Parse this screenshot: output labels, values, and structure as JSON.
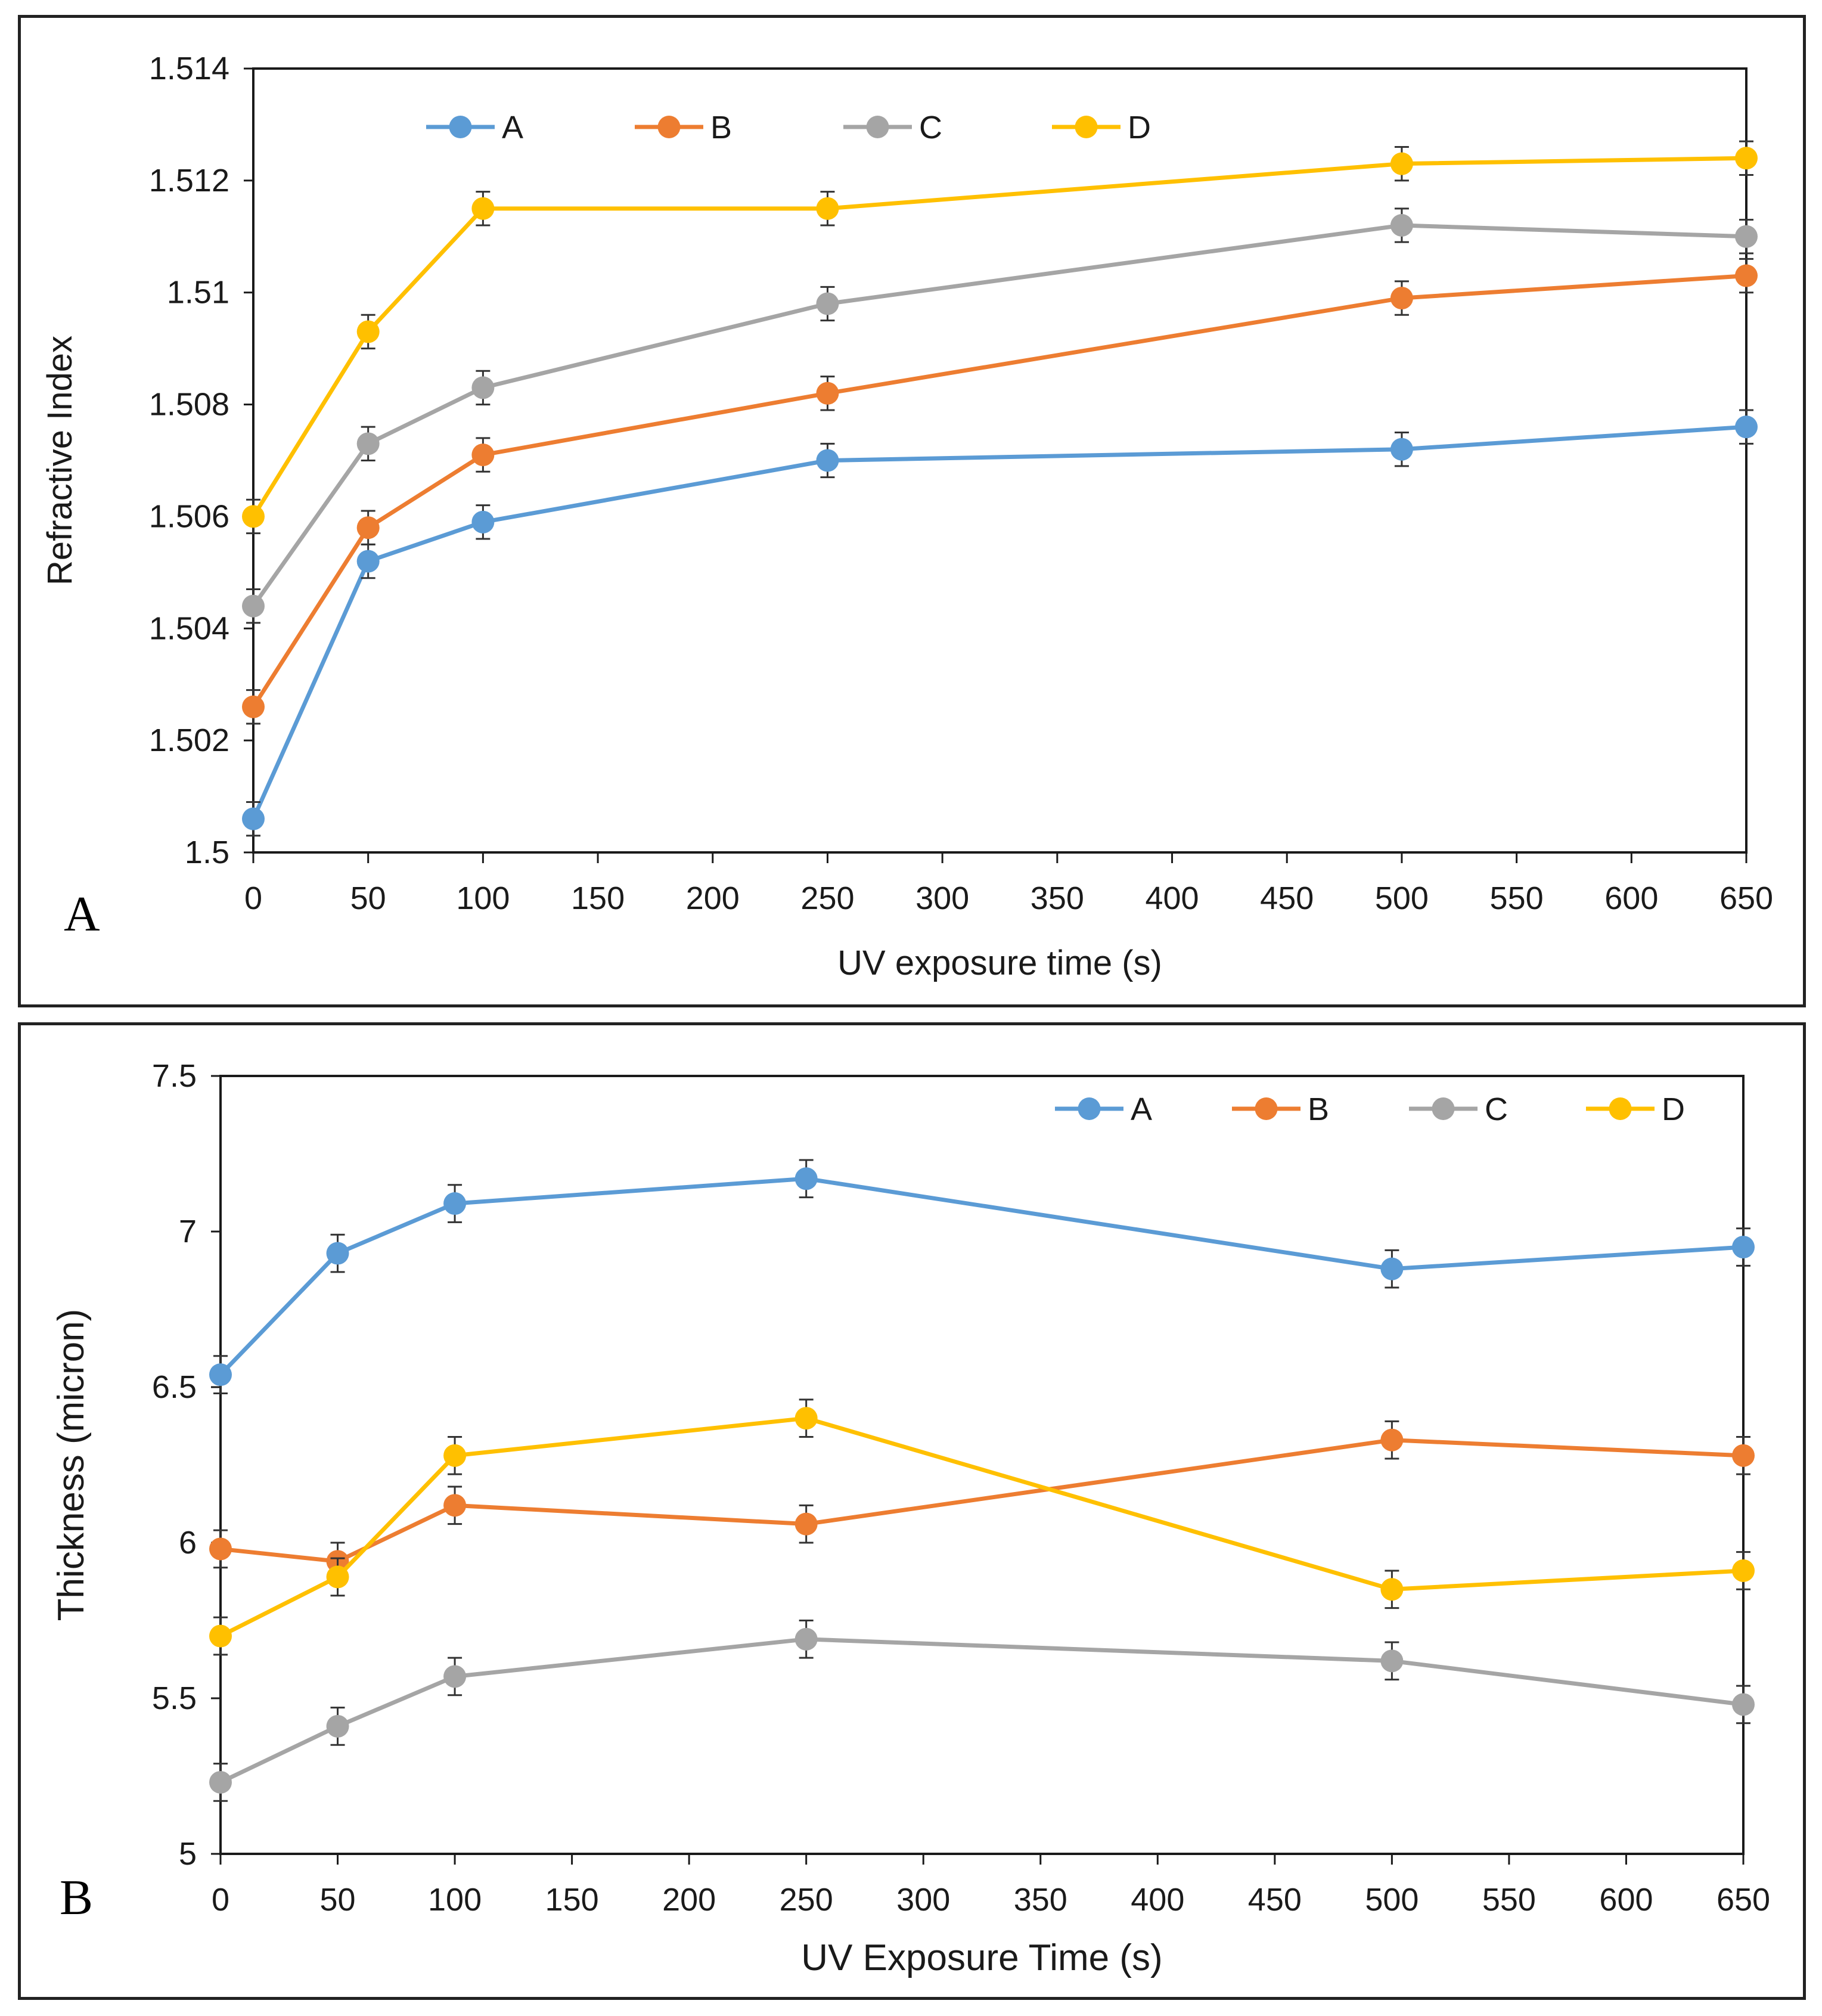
{
  "chart_data": [
    {
      "id": "A",
      "type": "line",
      "panel_label": "A",
      "xlabel": "UV exposure time (s)",
      "ylabel": "Refractive Index",
      "x": [
        0,
        50,
        100,
        250,
        500,
        650
      ],
      "xlim": [
        0,
        650
      ],
      "ylim": [
        1.5,
        1.514
      ],
      "xticks": [
        "0",
        "50",
        "100",
        "150",
        "200",
        "250",
        "300",
        "350",
        "400",
        "450",
        "500",
        "550",
        "600",
        "650"
      ],
      "yticks": [
        "1.5",
        "1.502",
        "1.504",
        "1.506",
        "1.508",
        "1.51",
        "1.512",
        "1.514"
      ],
      "legend_position": "top-left",
      "grid": false,
      "error_bar": 0.0003,
      "series": [
        {
          "name": "A",
          "color": "#5B9BD5",
          "values": [
            1.5006,
            1.5052,
            1.5059,
            1.507,
            1.5072,
            1.5076
          ]
        },
        {
          "name": "B",
          "color": "#ED7D31",
          "values": [
            1.5026,
            1.5058,
            1.5071,
            1.5082,
            1.5099,
            1.5103
          ]
        },
        {
          "name": "C",
          "color": "#A5A5A5",
          "values": [
            1.5044,
            1.5073,
            1.5083,
            1.5098,
            1.5112,
            1.511
          ]
        },
        {
          "name": "D",
          "color": "#FFC000",
          "values": [
            1.506,
            1.5093,
            1.5115,
            1.5115,
            1.5123,
            1.5124
          ]
        }
      ]
    },
    {
      "id": "B",
      "type": "line",
      "panel_label": "B",
      "xlabel": "UV Exposure Time (s)",
      "ylabel": "Thickness (micron)",
      "x": [
        0,
        50,
        100,
        250,
        500,
        650
      ],
      "xlim": [
        0,
        650
      ],
      "ylim": [
        5,
        7.5
      ],
      "xticks": [
        "0",
        "50",
        "100",
        "150",
        "200",
        "250",
        "300",
        "350",
        "400",
        "450",
        "500",
        "550",
        "600",
        "650"
      ],
      "yticks": [
        "5",
        "5.5",
        "6",
        "6.5",
        "7",
        "7.5"
      ],
      "legend_position": "top-right",
      "grid": false,
      "error_bar": 0.06,
      "series": [
        {
          "name": "A",
          "color": "#5B9BD5",
          "values": [
            6.54,
            6.93,
            7.09,
            7.17,
            6.88,
            6.95
          ]
        },
        {
          "name": "B",
          "color": "#ED7D31",
          "values": [
            5.98,
            5.94,
            6.12,
            6.06,
            6.33,
            6.28
          ]
        },
        {
          "name": "C",
          "color": "#A5A5A5",
          "values": [
            5.23,
            5.41,
            5.57,
            5.69,
            5.62,
            5.48
          ]
        },
        {
          "name": "D",
          "color": "#FFC000",
          "values": [
            5.7,
            5.89,
            6.28,
            6.4,
            5.85,
            5.91
          ]
        }
      ]
    }
  ]
}
